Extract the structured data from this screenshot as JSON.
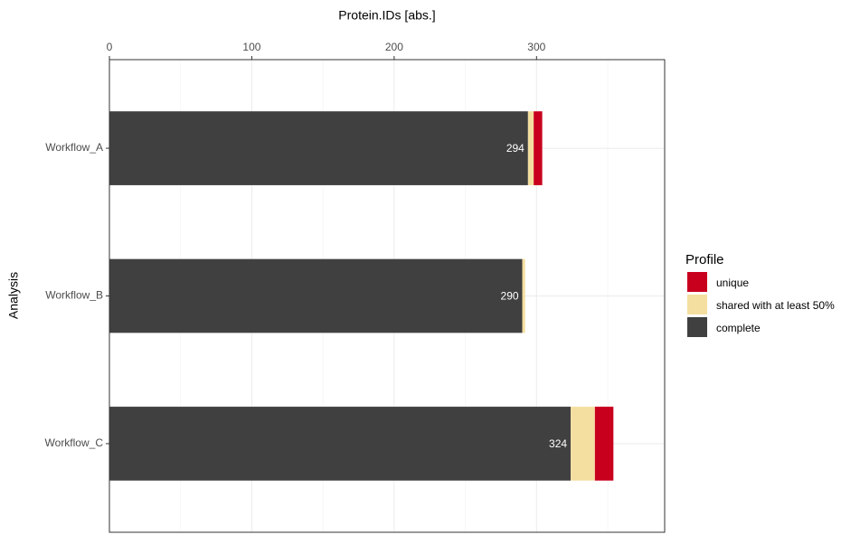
{
  "chart_data": {
    "type": "stacked-barh",
    "title": "Protein.IDs [abs.]",
    "y_label": "Analysis",
    "legend_title": "Profile",
    "categories": [
      "Workflow_A",
      "Workflow_B",
      "Workflow_C"
    ],
    "series": [
      {
        "name": "complete",
        "color": "#404040",
        "values": [
          294,
          290,
          324
        ]
      },
      {
        "name": "shared with at least 50%",
        "color": "#F5DFA0",
        "values": [
          4,
          2,
          17
        ]
      },
      {
        "name": "unique",
        "color": "#C8001E",
        "values": [
          6,
          0,
          13
        ]
      }
    ],
    "xlim": [
      0,
      390
    ],
    "xticks": [
      0,
      100,
      200,
      300
    ],
    "minor_grid": [
      50,
      150,
      250,
      350
    ],
    "grid": true,
    "legend": "right"
  }
}
